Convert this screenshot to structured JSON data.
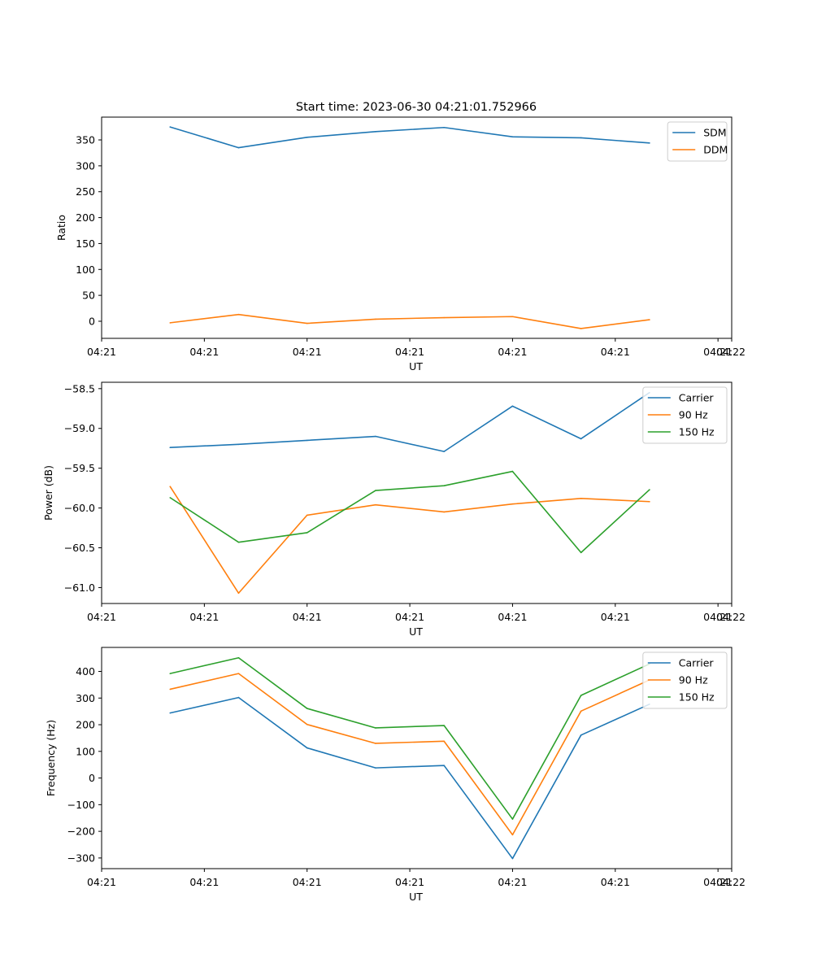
{
  "figure_title": "Start time: 2023-06-30 04:21:01.752966",
  "colors": {
    "blue": "#1f77b4",
    "orange": "#ff7f0e",
    "green": "#2ca02c"
  },
  "chart_data": [
    {
      "type": "line",
      "xlabel": "UT",
      "ylabel": "Ratio",
      "x_tick_labels": [
        "04:21",
        "04:21",
        "04:21",
        "04:21",
        "04:21",
        "04:21",
        "04:21"
      ],
      "x_last_tick_label": "04:22",
      "x": [
        1.0,
        2.0,
        3.0,
        4.0,
        5.0,
        6.0,
        7.0,
        8.0
      ],
      "xlim": [
        0.0,
        9.2
      ],
      "x_ticks": [
        0.0,
        1.5,
        3.0,
        4.5,
        6.0,
        7.5,
        9.0,
        9.2
      ],
      "ylim": [
        -33,
        394
      ],
      "yticks": [
        0,
        50,
        100,
        150,
        200,
        250,
        300,
        350
      ],
      "ytick_labels": [
        "0",
        "50",
        "100",
        "150",
        "200",
        "250",
        "300",
        "350"
      ],
      "legend_position": "top-right",
      "series": [
        {
          "name": "SDM",
          "color": "#1f77b4",
          "values": [
            375,
            335,
            355,
            366,
            374,
            356,
            354,
            344
          ]
        },
        {
          "name": "DDM",
          "color": "#ff7f0e",
          "values": [
            -3,
            13,
            -4,
            4,
            7,
            9,
            -14,
            3
          ]
        }
      ]
    },
    {
      "type": "line",
      "xlabel": "UT",
      "ylabel": "Power (dB)",
      "x_tick_labels": [
        "04:21",
        "04:21",
        "04:21",
        "04:21",
        "04:21",
        "04:21",
        "04:21"
      ],
      "x_last_tick_label": "04:22",
      "x": [
        1.0,
        2.0,
        3.0,
        4.0,
        5.0,
        6.0,
        7.0,
        8.0
      ],
      "xlim": [
        0.0,
        9.2
      ],
      "x_ticks": [
        0.0,
        1.5,
        3.0,
        4.5,
        6.0,
        7.5,
        9.0,
        9.2
      ],
      "ylim": [
        -61.2,
        -58.42
      ],
      "yticks": [
        -61.0,
        -60.5,
        -60.0,
        -59.5,
        -59.0,
        -58.5
      ],
      "ytick_labels": [
        "−61.0",
        "−60.5",
        "−60.0",
        "−59.5",
        "−59.0",
        "−58.5"
      ],
      "legend_position": "top-right",
      "series": [
        {
          "name": "Carrier",
          "color": "#1f77b4",
          "values": [
            -59.24,
            -59.2,
            -59.15,
            -59.1,
            -59.29,
            -58.72,
            -59.13,
            -58.55
          ]
        },
        {
          "name": "90 Hz",
          "color": "#ff7f0e",
          "values": [
            -59.73,
            -61.07,
            -60.09,
            -59.96,
            -60.05,
            -59.95,
            -59.88,
            -59.92
          ]
        },
        {
          "name": "150 Hz",
          "color": "#2ca02c",
          "values": [
            -59.87,
            -60.43,
            -60.31,
            -59.78,
            -59.72,
            -59.54,
            -60.56,
            -59.77
          ]
        }
      ]
    },
    {
      "type": "line",
      "xlabel": "UT",
      "ylabel": "Frequency (Hz)",
      "x_tick_labels": [
        "04:21",
        "04:21",
        "04:21",
        "04:21",
        "04:21",
        "04:21",
        "04:21"
      ],
      "x_last_tick_label": "04:22",
      "x": [
        1.0,
        2.0,
        3.0,
        4.0,
        5.0,
        6.0,
        7.0,
        8.0
      ],
      "xlim": [
        0.0,
        9.2
      ],
      "x_ticks": [
        0.0,
        1.5,
        3.0,
        4.5,
        6.0,
        7.5,
        9.0,
        9.2
      ],
      "ylim": [
        -340,
        490
      ],
      "yticks": [
        -300,
        -200,
        -100,
        0,
        100,
        200,
        300,
        400
      ],
      "ytick_labels": [
        "−300",
        "−200",
        "−100",
        "0",
        "100",
        "200",
        "300",
        "400"
      ],
      "legend_position": "top-right",
      "series": [
        {
          "name": "Carrier",
          "color": "#1f77b4",
          "values": [
            244,
            302,
            113,
            38,
            47,
            -302,
            161,
            277
          ]
        },
        {
          "name": "90 Hz",
          "color": "#ff7f0e",
          "values": [
            333,
            392,
            201,
            130,
            138,
            -213,
            251,
            368
          ]
        },
        {
          "name": "150 Hz",
          "color": "#2ca02c",
          "values": [
            392,
            451,
            261,
            188,
            197,
            -154,
            310,
            428
          ]
        }
      ]
    }
  ]
}
